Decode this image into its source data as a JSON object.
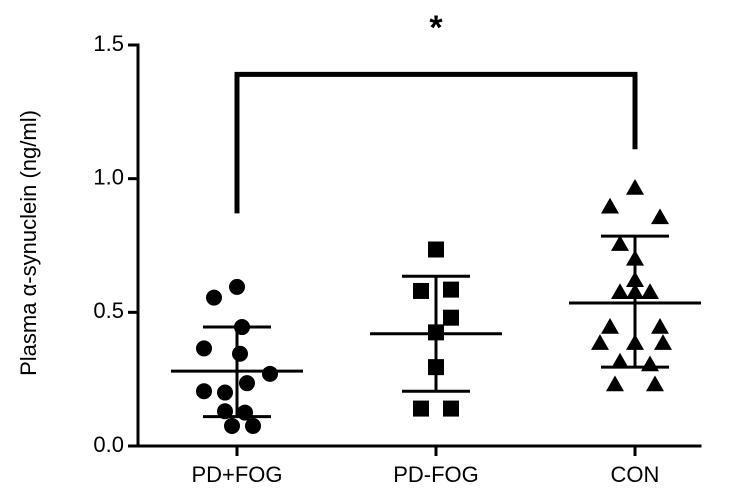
{
  "chart_data": {
    "type": "scatter",
    "title": "",
    "xlabel": "",
    "ylabel": "Plasma α-synuclein (ng/ml)",
    "ylim": [
      0.0,
      1.5
    ],
    "yticks": [
      "0.0",
      "0.5",
      "1.0",
      "1.5"
    ],
    "categories": [
      "PD+FOG",
      "PD-FOG",
      "CON"
    ],
    "grid": false,
    "legend": "none",
    "series": [
      {
        "category": "PD+FOG",
        "marker": "circle",
        "mean": 0.28,
        "sd_lower": 0.11,
        "sd_upper": 0.445,
        "points": [
          {
            "x": 0.0,
            "y": 0.595
          },
          {
            "x": -0.23,
            "y": 0.555
          },
          {
            "x": 0.05,
            "y": 0.445
          },
          {
            "x": -0.33,
            "y": 0.365
          },
          {
            "x": 0.03,
            "y": 0.345
          },
          {
            "x": 0.33,
            "y": 0.27
          },
          {
            "x": 0.1,
            "y": 0.235
          },
          {
            "x": -0.33,
            "y": 0.205
          },
          {
            "x": -0.12,
            "y": 0.2
          },
          {
            "x": -0.12,
            "y": 0.13
          },
          {
            "x": 0.08,
            "y": 0.125
          },
          {
            "x": -0.05,
            "y": 0.075
          },
          {
            "x": 0.16,
            "y": 0.075
          }
        ]
      },
      {
        "category": "PD-FOG",
        "marker": "square",
        "mean": 0.42,
        "sd_lower": 0.205,
        "sd_upper": 0.635,
        "points": [
          {
            "x": 0.0,
            "y": 0.735
          },
          {
            "x": -0.15,
            "y": 0.58
          },
          {
            "x": 0.15,
            "y": 0.585
          },
          {
            "x": 0.15,
            "y": 0.48
          },
          {
            "x": 0.0,
            "y": 0.425
          },
          {
            "x": 0.0,
            "y": 0.295
          },
          {
            "x": -0.15,
            "y": 0.14
          },
          {
            "x": 0.15,
            "y": 0.14
          }
        ]
      },
      {
        "category": "CON",
        "marker": "triangle",
        "mean": 0.535,
        "sd_lower": 0.295,
        "sd_upper": 0.785,
        "points": [
          {
            "x": 0.0,
            "y": 0.965
          },
          {
            "x": -0.25,
            "y": 0.895
          },
          {
            "x": 0.25,
            "y": 0.855
          },
          {
            "x": -0.15,
            "y": 0.755
          },
          {
            "x": 0.0,
            "y": 0.7
          },
          {
            "x": 0.0,
            "y": 0.62
          },
          {
            "x": 0.0,
            "y": 0.575
          },
          {
            "x": -0.15,
            "y": 0.575
          },
          {
            "x": 0.15,
            "y": 0.575
          },
          {
            "x": -0.25,
            "y": 0.445
          },
          {
            "x": 0.25,
            "y": 0.445
          },
          {
            "x": -0.35,
            "y": 0.385
          },
          {
            "x": 0.0,
            "y": 0.385
          },
          {
            "x": 0.28,
            "y": 0.385
          },
          {
            "x": -0.15,
            "y": 0.315
          },
          {
            "x": 0.15,
            "y": 0.305
          },
          {
            "x": -0.2,
            "y": 0.23
          },
          {
            "x": 0.2,
            "y": 0.23
          }
        ]
      }
    ],
    "significance": {
      "from": "PD+FOG",
      "to": "CON",
      "y": 1.39,
      "label": "*"
    }
  }
}
